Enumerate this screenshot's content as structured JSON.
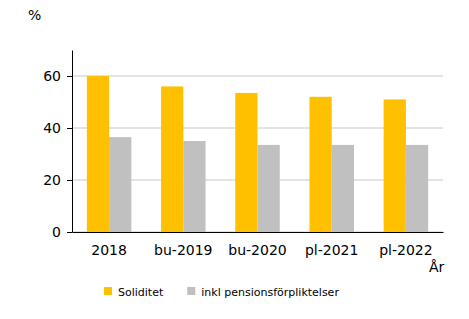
{
  "chart_data": {
    "type": "bar",
    "ylabel": "%",
    "xlabel": "År",
    "categories": [
      "2018",
      "bu-2019",
      "bu-2020",
      "pl-2021",
      "pl-2022"
    ],
    "series": [
      {
        "name": "Soliditet",
        "color": "#FFC000",
        "values": [
          60,
          56,
          53.5,
          52,
          51
        ]
      },
      {
        "name": "inkl pensionsförpliktelser",
        "color": "#C0C0C0",
        "values": [
          36.5,
          35,
          33.5,
          33.5,
          33.5
        ]
      }
    ],
    "ylim": [
      0,
      70
    ],
    "yticks": [
      0,
      20,
      40,
      60
    ],
    "grid": true,
    "legend": "bottom"
  }
}
